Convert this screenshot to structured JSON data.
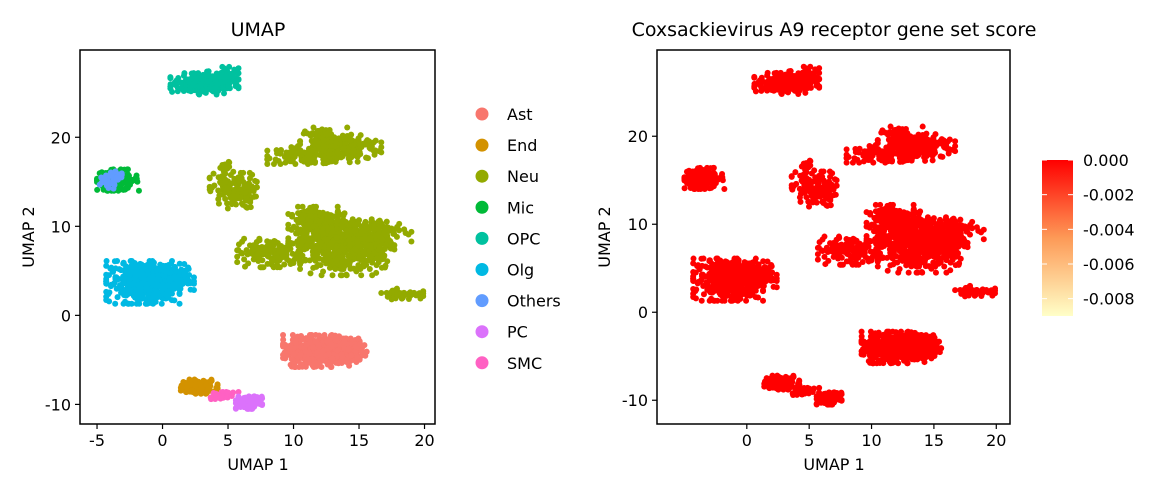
{
  "chart_data": [
    {
      "type": "scatter",
      "title": "UMAP",
      "xlabel": "UMAP 1",
      "ylabel": "UMAP 2",
      "xlim": [
        -6.3,
        20.8
      ],
      "ylim": [
        -12.2,
        29.8
      ],
      "xticks": [
        -5,
        0,
        5,
        10,
        15,
        20
      ],
      "yticks": [
        -10,
        0,
        10,
        20
      ],
      "grid": false,
      "legend_position": "right",
      "legend": [
        {
          "label": "Ast",
          "color": "#F8766D"
        },
        {
          "label": "End",
          "color": "#D39200"
        },
        {
          "label": "Neu",
          "color": "#93AA00"
        },
        {
          "label": "Mic",
          "color": "#00BA38"
        },
        {
          "label": "OPC",
          "color": "#00C19F"
        },
        {
          "label": "Olg",
          "color": "#00B9E3"
        },
        {
          "label": "Others",
          "color": "#619CFF"
        },
        {
          "label": "PC",
          "color": "#DB72FB"
        },
        {
          "label": "SMC",
          "color": "#FF61C3"
        }
      ],
      "clusters": [
        {
          "label": "OPC",
          "cx": 3.2,
          "cy": 26.0,
          "sx": 1.3,
          "sy": 0.6,
          "n": 160
        },
        {
          "label": "OPC",
          "cx": 4.6,
          "cy": 26.7,
          "sx": 0.6,
          "sy": 0.6,
          "n": 80
        },
        {
          "label": "Mic",
          "cx": -3.4,
          "cy": 15.2,
          "sx": 0.8,
          "sy": 0.6,
          "n": 130
        },
        {
          "label": "Others",
          "cx": -4.2,
          "cy": 14.9,
          "sx": 0.5,
          "sy": 0.4,
          "n": 25
        },
        {
          "label": "Others",
          "cx": -3.4,
          "cy": 15.6,
          "sx": 0.4,
          "sy": 0.3,
          "n": 12
        },
        {
          "label": "Neu",
          "cx": 11.0,
          "cy": 18.0,
          "sx": 1.5,
          "sy": 0.5,
          "n": 120
        },
        {
          "label": "Neu",
          "cx": 12.3,
          "cy": 19.5,
          "sx": 0.9,
          "sy": 0.8,
          "n": 100
        },
        {
          "label": "Neu",
          "cx": 14.5,
          "cy": 18.8,
          "sx": 1.1,
          "sy": 0.8,
          "n": 120
        },
        {
          "label": "Neu",
          "cx": 5.4,
          "cy": 14.0,
          "sx": 0.9,
          "sy": 1.0,
          "n": 130
        },
        {
          "label": "Neu",
          "cx": 4.8,
          "cy": 16.5,
          "sx": 0.3,
          "sy": 0.4,
          "n": 15
        },
        {
          "label": "Neu",
          "cx": 8.3,
          "cy": 7.0,
          "sx": 1.3,
          "sy": 0.8,
          "n": 150
        },
        {
          "label": "Neu",
          "cx": 12.0,
          "cy": 10.0,
          "sx": 1.2,
          "sy": 1.1,
          "n": 200
        },
        {
          "label": "Neu",
          "cx": 13.5,
          "cy": 7.5,
          "sx": 1.5,
          "sy": 1.5,
          "n": 320
        },
        {
          "label": "Neu",
          "cx": 15.5,
          "cy": 8.0,
          "sx": 1.1,
          "sy": 1.4,
          "n": 200
        },
        {
          "label": "Neu",
          "cx": 17.0,
          "cy": 9.5,
          "sx": 1.0,
          "sy": 0.6,
          "n": 60
        },
        {
          "label": "Neu",
          "cx": 18.3,
          "cy": 2.4,
          "sx": 0.8,
          "sy": 0.3,
          "n": 60
        },
        {
          "label": "Olg",
          "cx": -1.5,
          "cy": 3.7,
          "sx": 1.4,
          "sy": 1.2,
          "n": 420
        },
        {
          "label": "Olg",
          "cx": 0.8,
          "cy": 4.2,
          "sx": 0.8,
          "sy": 0.8,
          "n": 100
        },
        {
          "label": "Ast",
          "cx": 12.0,
          "cy": -4.0,
          "sx": 1.4,
          "sy": 0.9,
          "n": 380
        },
        {
          "label": "Ast",
          "cx": 14.3,
          "cy": -3.8,
          "sx": 0.8,
          "sy": 0.6,
          "n": 120
        },
        {
          "label": "End",
          "cx": 2.8,
          "cy": -8.0,
          "sx": 0.7,
          "sy": 0.4,
          "n": 140
        },
        {
          "label": "SMC",
          "cx": 4.6,
          "cy": -9.0,
          "sx": 0.6,
          "sy": 0.2,
          "n": 30
        },
        {
          "label": "PC",
          "cx": 6.6,
          "cy": -9.8,
          "sx": 0.5,
          "sy": 0.35,
          "n": 110
        }
      ]
    },
    {
      "type": "scatter",
      "title": "Coxsackievirus A9 receptor gene set score",
      "xlabel": "UMAP 1",
      "ylabel": "UMAP 2",
      "xlim": [
        -7.2,
        21.1
      ],
      "ylim": [
        -12.7,
        29.8
      ],
      "xticks": [
        0,
        5,
        10,
        15,
        20
      ],
      "yticks": [
        -10,
        0,
        10,
        20
      ],
      "grid": false,
      "colorbar": {
        "range": [
          -0.009,
          0.0
        ],
        "ticks": [
          "0.000",
          "-0.002",
          "-0.004",
          "-0.006",
          "-0.008"
        ],
        "tick_values": [
          0.0,
          -0.002,
          -0.004,
          -0.006,
          -0.008
        ],
        "low_color": "#FFFFC8",
        "mid_color": "#FD9A57",
        "high_color": "#FF0000"
      },
      "point_value": 0.0,
      "point_color": "#FF0000"
    }
  ]
}
